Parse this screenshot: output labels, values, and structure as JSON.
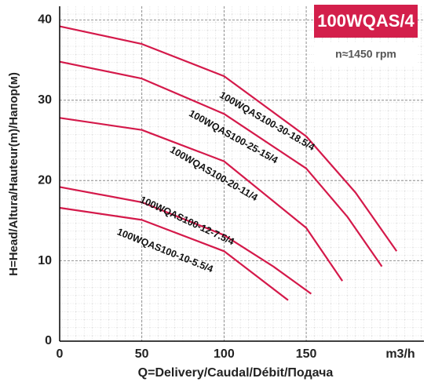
{
  "chart_data": {
    "type": "line",
    "title": "100WQAS/4",
    "subtitle": "n≈1450 rpm",
    "x_label": "Q=Delivery/Caudal/Débit/Подача",
    "x_unit": "m3/h",
    "y_label": "H=Head/Altura/Hauteur(m)/Напор(м)",
    "xlim": [
      0,
      221.6
    ],
    "xticks": [
      0,
      50,
      100,
      150
    ],
    "ylim": [
      0,
      41.7
    ],
    "yticks": [
      0,
      10,
      20,
      30,
      40
    ],
    "grid": true,
    "series": [
      {
        "name": "100WQAS100-30-18.5/4",
        "color": "#d4194a",
        "x": [
          0,
          50,
          100,
          150,
          180,
          205
        ],
        "values": [
          39.2,
          37,
          33,
          25.5,
          18.5,
          11.2
        ]
      },
      {
        "name": "100WQAS100-25-15/4",
        "color": "#d4194a",
        "x": [
          0,
          50,
          100,
          150,
          175,
          196
        ],
        "values": [
          34.8,
          32.7,
          28.3,
          21.5,
          15.5,
          9.3
        ]
      },
      {
        "name": "100WQAS100-20-11/4",
        "color": "#d4194a",
        "x": [
          0,
          50,
          100,
          150,
          172
        ],
        "values": [
          27.8,
          26.3,
          22.4,
          14.1,
          7.5
        ]
      },
      {
        "name": "100WQAS100-12-7.5/4",
        "color": "#d4194a",
        "x": [
          0,
          50,
          100,
          130,
          153
        ],
        "values": [
          19.2,
          17.3,
          13.2,
          9.3,
          5.9
        ]
      },
      {
        "name": "100WQAS100-10-5.5/4",
        "color": "#d4194a",
        "x": [
          0,
          50,
          100,
          139
        ],
        "values": [
          16.6,
          15.1,
          11.2,
          5.1
        ]
      }
    ]
  }
}
